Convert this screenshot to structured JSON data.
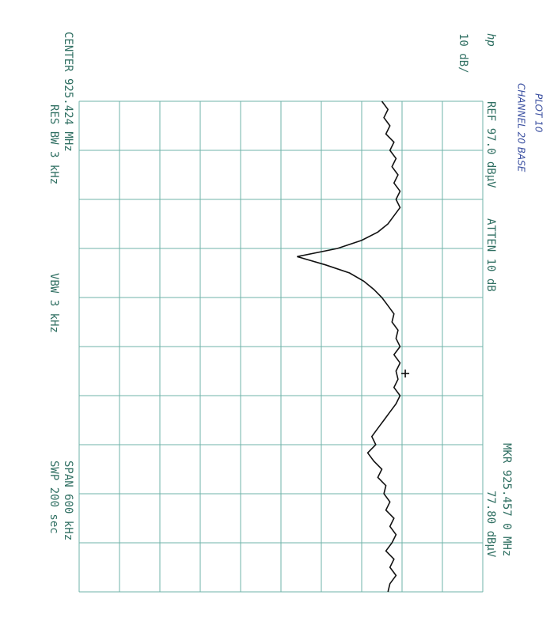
{
  "chart_data": {
    "type": "line",
    "annotations": {
      "plot": "PLOT 10",
      "channel": "CHANNEL 20 BASE",
      "logo": "hp",
      "scale": "10 dB/",
      "ref": "REF 97.0 dBµV",
      "atten": "ATTEN 10 dB",
      "marker_freq": "MKR 925.457 0 MHz",
      "marker_level": "77.80 dBµV",
      "center": "CENTER 925.424 MHz",
      "res_bw": "RES BW 3 kHz",
      "vbw": "VBW 3 kHz",
      "span": "SPAN 600 kHz",
      "sweep": "SWP 200 sec"
    },
    "x": [
      925.124,
      925.134,
      925.144,
      925.154,
      925.164,
      925.174,
      925.184,
      925.194,
      925.204,
      925.214,
      925.224,
      925.234,
      925.244,
      925.254,
      925.264,
      925.274,
      925.284,
      925.294,
      925.304,
      925.314,
      925.324,
      925.334,
      925.344,
      925.354,
      925.364,
      925.374,
      925.384,
      925.394,
      925.404,
      925.414,
      925.424,
      925.434,
      925.444,
      925.454,
      925.464,
      925.474,
      925.484,
      925.494,
      925.504,
      925.514,
      925.524,
      925.534,
      925.544,
      925.554,
      925.564,
      925.574,
      925.584,
      925.594,
      925.604,
      925.614,
      925.624,
      925.634,
      925.644,
      925.654,
      925.664,
      925.674,
      925.684,
      925.694,
      925.704,
      925.714,
      925.724
    ],
    "series": [
      {
        "color": "#111111",
        "values": [
          72,
          73.5,
          72.5,
          74,
          73,
          75,
          74,
          75.5,
          74.5,
          76,
          75,
          76.5,
          75.5,
          76.5,
          75,
          73.5,
          71,
          67,
          61,
          51,
          58,
          64,
          67.5,
          70,
          72,
          73.5,
          75,
          74.5,
          76,
          75.5,
          76.5,
          75,
          76.5,
          75.5,
          76,
          75,
          76.5,
          75.5,
          74,
          72.5,
          71,
          69.5,
          70.5,
          68.5,
          70,
          72,
          71,
          73,
          72.5,
          74,
          73,
          75,
          74,
          75.5,
          74.5,
          73,
          75,
          74,
          75.5,
          74,
          73.5
        ]
      }
    ],
    "marker": {
      "x": 925.457,
      "y": 77.8
    },
    "xlim": [
      925.124,
      925.724
    ],
    "xticks": [
      925.124,
      925.184,
      925.244,
      925.304,
      925.364,
      925.424,
      925.484,
      925.544,
      925.604,
      925.664,
      925.724
    ],
    "ylim": [
      -3,
      97
    ],
    "yticks": [
      -3,
      7,
      17,
      27,
      37,
      47,
      57,
      67,
      77,
      87,
      97
    ],
    "grid": true,
    "grid_color": "#6fb3a8",
    "text_color": "#2f6f62",
    "handwriting_color": "#3a4fa0"
  }
}
